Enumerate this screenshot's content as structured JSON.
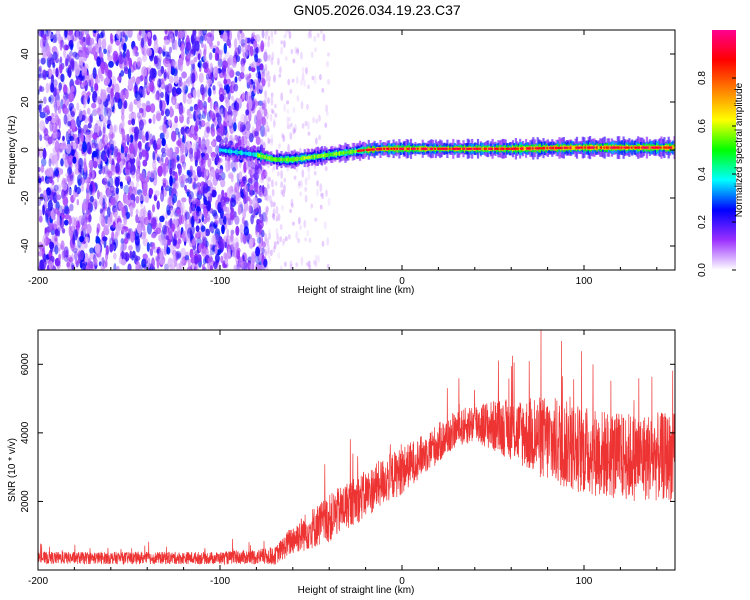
{
  "title": "GN05.2026.034.19.23.C37",
  "chart_data": [
    {
      "type": "heatmap",
      "xlabel": "Height of straight line (km)",
      "ylabel": "Frequency (Hz)",
      "xlim": [
        -200,
        150
      ],
      "ylim": [
        -50,
        50
      ],
      "x_ticks": [
        -200,
        -100,
        0,
        100
      ],
      "y_ticks": [
        -40,
        -20,
        0,
        20,
        40
      ],
      "noise_region_x": [
        -200,
        -75
      ],
      "fringe_region_x": [
        -75,
        -40
      ],
      "ridge": {
        "x": [
          -100,
          -90,
          -80,
          -75,
          -70,
          -60,
          -50,
          -40,
          -30,
          -20,
          -10,
          0,
          20,
          40,
          60,
          80,
          100,
          120,
          150
        ],
        "y": [
          0,
          -1,
          -2,
          -3,
          -4,
          -4,
          -3,
          -2,
          -1,
          0,
          0.5,
          0.5,
          0.5,
          0.5,
          0.5,
          0.8,
          1,
          1,
          1
        ]
      },
      "colorbar": {
        "label": "Normalized spectral amplitude",
        "ticks": [
          "0.0",
          "0.2",
          "0.4",
          "0.6",
          "0.8"
        ],
        "range": [
          0,
          1
        ],
        "colors": [
          "#ffffff",
          "#9b30ff",
          "#0000ff",
          "#00ffff",
          "#00ff00",
          "#ffff00",
          "#ff8000",
          "#ff0000",
          "#ff0090"
        ]
      }
    },
    {
      "type": "line",
      "color": "#ee3333",
      "xlabel": "Height of straight line (km)",
      "ylabel": "SNR (10 * v/v)",
      "xlim": [
        -200,
        150
      ],
      "ylim": [
        0,
        7000
      ],
      "x_ticks": [
        -200,
        -100,
        0,
        100
      ],
      "y_ticks": [
        2000,
        4000,
        6000
      ],
      "envelope": {
        "x": [
          -200,
          -150,
          -100,
          -70,
          -60,
          -50,
          -40,
          -30,
          -20,
          -10,
          0,
          10,
          20,
          30,
          40,
          60,
          80,
          100,
          120,
          150
        ],
        "mean": [
          350,
          350,
          350,
          400,
          900,
          1200,
          1500,
          1900,
          2200,
          2600,
          2900,
          3300,
          3700,
          4100,
          4300,
          4100,
          3800,
          3500,
          3300,
          3300
        ],
        "spread": [
          180,
          180,
          180,
          250,
          450,
          600,
          700,
          700,
          700,
          700,
          700,
          600,
          600,
          500,
          600,
          900,
          1300,
          1300,
          1300,
          1300
        ]
      }
    }
  ]
}
